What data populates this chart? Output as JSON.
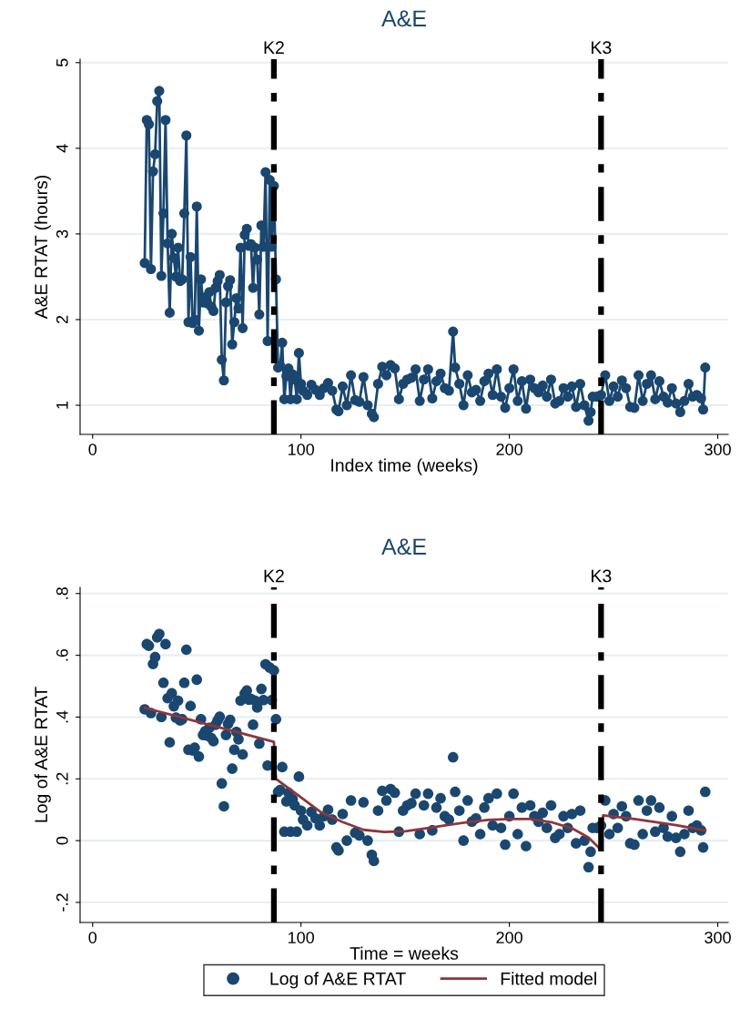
{
  "chart_data": [
    {
      "type": "line",
      "title": "A&E",
      "xlabel": "Index time (weeks)",
      "ylabel": "A&E RTAT (hours)",
      "xlim": [
        -6,
        305
      ],
      "ylim": [
        0.66,
        5.04
      ],
      "xticks": [
        0,
        100,
        200,
        300
      ],
      "yticks": [
        1,
        2,
        3,
        4,
        5
      ],
      "grid": "y",
      "legend": false,
      "marker": "circle",
      "x": [
        25,
        26,
        27,
        28,
        29,
        30,
        31,
        32,
        33,
        34,
        35,
        36,
        37,
        38,
        39,
        40,
        41,
        42,
        43,
        44,
        45,
        46,
        47,
        48,
        49,
        50,
        51,
        52,
        53,
        54,
        55,
        56,
        57,
        58,
        59,
        60,
        61,
        62,
        63,
        64,
        65,
        66,
        67,
        68,
        69,
        70,
        71,
        72,
        73,
        74,
        75,
        76,
        77,
        78,
        79,
        80,
        81,
        82,
        83,
        84,
        85,
        86,
        87,
        88,
        89,
        90,
        91,
        92,
        93,
        94,
        95,
        96,
        97,
        98,
        99,
        100,
        101,
        103,
        105,
        107,
        109,
        111,
        113,
        115,
        117,
        118,
        120,
        122,
        124,
        126,
        128,
        130,
        132,
        134,
        135,
        137,
        139,
        141,
        143,
        145,
        147,
        149,
        151,
        153,
        155,
        157,
        159,
        161,
        163,
        165,
        167,
        169,
        171,
        173,
        174,
        176,
        178,
        180,
        182,
        184,
        186,
        188,
        190,
        192,
        194,
        196,
        198,
        200,
        202,
        204,
        206,
        208,
        210,
        212,
        214,
        216,
        218,
        220,
        222,
        224,
        226,
        228,
        230,
        232,
        234,
        236,
        238,
        239,
        240,
        242,
        244,
        246,
        248,
        250,
        252,
        254,
        256,
        258,
        260,
        262,
        264,
        266,
        268,
        270,
        272,
        274,
        276,
        278,
        280,
        282,
        284,
        286,
        288,
        290,
        292,
        293,
        294
      ],
      "series": [
        {
          "color": "#1a476f",
          "values": [
            2.66,
            4.33,
            4.28,
            2.59,
            3.73,
            3.93,
            4.55,
            4.67,
            2.51,
            3.24,
            4.33,
            2.89,
            2.08,
            3.0,
            2.72,
            2.5,
            2.84,
            2.45,
            2.47,
            3.24,
            4.15,
            1.97,
            2.73,
            1.96,
            2.0,
            3.32,
            1.87,
            2.47,
            2.2,
            2.26,
            2.19,
            2.32,
            2.15,
            2.1,
            2.37,
            2.45,
            2.52,
            1.53,
            1.29,
            2.2,
            2.39,
            2.46,
            1.71,
            1.97,
            2.25,
            2.13,
            2.84,
            1.9,
            2.99,
            3.06,
            2.86,
            2.88,
            2.37,
            2.84,
            2.7,
            2.06,
            3.1,
            2.85,
            3.72,
            1.75,
            3.63,
            2.85,
            3.56,
            2.47,
            1.44,
            1.46,
            1.73,
            1.07,
            1.34,
            1.43,
            1.07,
            1.36,
            1.3,
            1.07,
            1.61,
            1.25,
            1.17,
            1.12,
            1.24,
            1.18,
            1.12,
            1.2,
            1.26,
            1.17,
            0.95,
            0.93,
            1.22,
            1.0,
            1.35,
            1.06,
            1.04,
            1.33,
            1.0,
            0.9,
            0.86,
            1.25,
            1.45,
            1.35,
            1.47,
            1.43,
            1.07,
            1.25,
            1.3,
            1.32,
            1.42,
            1.05,
            1.3,
            1.42,
            1.08,
            1.28,
            1.37,
            1.2,
            1.17,
            1.86,
            1.44,
            1.25,
            1.0,
            1.35,
            1.15,
            1.18,
            1.05,
            1.28,
            1.37,
            1.12,
            1.42,
            1.1,
            0.97,
            1.2,
            1.42,
            1.05,
            1.28,
            0.96,
            1.3,
            1.2,
            1.15,
            1.23,
            1.1,
            1.3,
            1.02,
            1.05,
            1.2,
            1.1,
            1.22,
            0.98,
            1.25,
            1.0,
            0.82,
            0.92,
            1.1,
            1.1,
            1.12,
            1.35,
            1.05,
            1.22,
            1.1,
            1.29,
            1.2,
            0.98,
            0.97,
            1.35,
            1.05,
            1.25,
            1.35,
            1.07,
            1.28,
            1.1,
            1.03,
            1.2,
            1.02,
            0.92,
            1.05,
            1.25,
            1.1,
            1.12,
            1.08,
            0.95,
            1.44
          ]
        }
      ],
      "ref_lines": [
        {
          "axis": "x",
          "value": 87,
          "label": "K2",
          "color": "#000000",
          "line_style": "dashdot"
        },
        {
          "axis": "x",
          "value": 244,
          "label": "K3",
          "color": "#000000",
          "line_style": "dashdot"
        }
      ]
    },
    {
      "type": "scatter",
      "title": "A&E",
      "xlabel": "Time = weeks",
      "ylabel": "Log of A&E RTAT",
      "xlim": [
        -6,
        305
      ],
      "ylim": [
        -0.265,
        0.82
      ],
      "xticks": [
        0,
        100,
        200,
        300
      ],
      "yticks": [
        {
          "value": -0.2,
          "label": "-.2"
        },
        0,
        {
          "value": 0.2,
          "label": ".2"
        },
        {
          "value": 0.4,
          "label": ".4"
        },
        {
          "value": 0.6,
          "label": ".6"
        },
        {
          "value": 0.8,
          "label": ".8"
        }
      ],
      "grid": "y",
      "legend": "bottom",
      "marker": "circle",
      "x": [
        25,
        26,
        27,
        28,
        29,
        30,
        31,
        32,
        33,
        34,
        35,
        36,
        37,
        38,
        39,
        40,
        41,
        42,
        43,
        44,
        45,
        46,
        47,
        48,
        49,
        50,
        51,
        52,
        53,
        54,
        55,
        56,
        57,
        58,
        59,
        60,
        61,
        62,
        63,
        64,
        65,
        66,
        67,
        68,
        69,
        70,
        71,
        72,
        73,
        74,
        75,
        76,
        77,
        78,
        79,
        80,
        81,
        82,
        83,
        84,
        85,
        86,
        87,
        88,
        89,
        90,
        91,
        92,
        93,
        94,
        95,
        96,
        97,
        98,
        99,
        100,
        101,
        103,
        105,
        107,
        109,
        111,
        113,
        115,
        117,
        118,
        120,
        122,
        124,
        126,
        128,
        130,
        132,
        134,
        135,
        137,
        139,
        141,
        143,
        145,
        147,
        149,
        151,
        153,
        155,
        157,
        159,
        161,
        163,
        165,
        167,
        169,
        171,
        173,
        174,
        176,
        178,
        180,
        182,
        184,
        186,
        188,
        190,
        192,
        194,
        196,
        198,
        200,
        202,
        204,
        206,
        208,
        210,
        212,
        214,
        216,
        218,
        220,
        222,
        224,
        226,
        228,
        230,
        232,
        234,
        236,
        238,
        239,
        240,
        242,
        244,
        246,
        248,
        250,
        252,
        254,
        256,
        258,
        260,
        262,
        264,
        266,
        268,
        270,
        272,
        274,
        276,
        278,
        280,
        282,
        284,
        286,
        288,
        290,
        292,
        293,
        294
      ],
      "series": [
        {
          "name": "Log of A&E RTAT",
          "color": "#1a476f",
          "values": [
            0.425,
            0.636,
            0.631,
            0.413,
            0.572,
            0.594,
            0.658,
            0.669,
            0.4,
            0.511,
            0.636,
            0.461,
            0.318,
            0.477,
            0.435,
            0.398,
            0.453,
            0.389,
            0.393,
            0.511,
            0.618,
            0.294,
            0.436,
            0.292,
            0.301,
            0.521,
            0.272,
            0.393,
            0.342,
            0.354,
            0.34,
            0.365,
            0.332,
            0.322,
            0.375,
            0.389,
            0.401,
            0.185,
            0.111,
            0.342,
            0.378,
            0.391,
            0.233,
            0.294,
            0.352,
            0.328,
            0.453,
            0.279,
            0.476,
            0.486,
            0.456,
            0.459,
            0.375,
            0.453,
            0.431,
            0.314,
            0.491,
            0.455,
            0.571,
            0.243,
            0.56,
            0.455,
            0.551,
            0.393,
            0.158,
            0.164,
            0.238,
            0.029,
            0.127,
            0.155,
            0.029,
            0.134,
            0.114,
            0.029,
            0.207,
            0.097,
            0.068,
            0.049,
            0.093,
            0.072,
            0.049,
            0.079,
            0.1,
            0.068,
            -0.022,
            -0.032,
            0.086,
            0,
            0.13,
            0.025,
            0.017,
            0.124,
            0,
            -0.046,
            -0.066,
            0.097,
            0.161,
            0.13,
            0.167,
            0.155,
            0.029,
            0.097,
            0.114,
            0.121,
            0.152,
            0.021,
            0.114,
            0.152,
            0.033,
            0.107,
            0.137,
            0.079,
            0.068,
            0.27,
            0.158,
            0.097,
            0,
            0.13,
            0.061,
            0.072,
            0.021,
            0.107,
            0.137,
            0.049,
            0.152,
            0.041,
            -0.013,
            0.079,
            0.152,
            0.021,
            0.107,
            -0.018,
            0.114,
            0.079,
            0.061,
            0.09,
            0.041,
            0.114,
            0.009,
            0.021,
            0.079,
            0.041,
            0.086,
            -0.009,
            0.097,
            0,
            -0.086,
            -0.036,
            0.041,
            0.041,
            0.049,
            0.13,
            0.021,
            0.086,
            0.041,
            0.111,
            0.079,
            -0.009,
            -0.013,
            0.13,
            0.021,
            0.097,
            0.13,
            0.029,
            0.107,
            0.041,
            0.013,
            0.079,
            0.009,
            -0.036,
            0.021,
            0.097,
            0.041,
            0.049,
            0.033,
            -0.022,
            0.158
          ]
        },
        {
          "type": "line",
          "name": "Fitted model",
          "color": "#90353b",
          "marker": "none",
          "x": [
            25,
            87,
            88,
            100,
            110,
            120,
            130,
            140,
            150,
            160,
            170,
            180,
            190,
            200,
            210,
            220,
            230,
            238,
            244,
            245,
            260,
            280,
            294
          ],
          "values": [
            0.43,
            0.32,
            0.2,
            0.14,
            0.09,
            0.06,
            0.035,
            0.028,
            0.03,
            0.04,
            0.05,
            0.06,
            0.067,
            0.07,
            0.07,
            0.06,
            0.04,
            0.01,
            -0.03,
            0.082,
            0.07,
            0.05,
            0.033
          ]
        }
      ],
      "ref_lines": [
        {
          "axis": "x",
          "value": 87,
          "label": "K2",
          "color": "#000000",
          "line_style": "dashdot"
        },
        {
          "axis": "x",
          "value": 244,
          "label": "K3",
          "color": "#000000",
          "line_style": "dashdot"
        }
      ]
    }
  ]
}
